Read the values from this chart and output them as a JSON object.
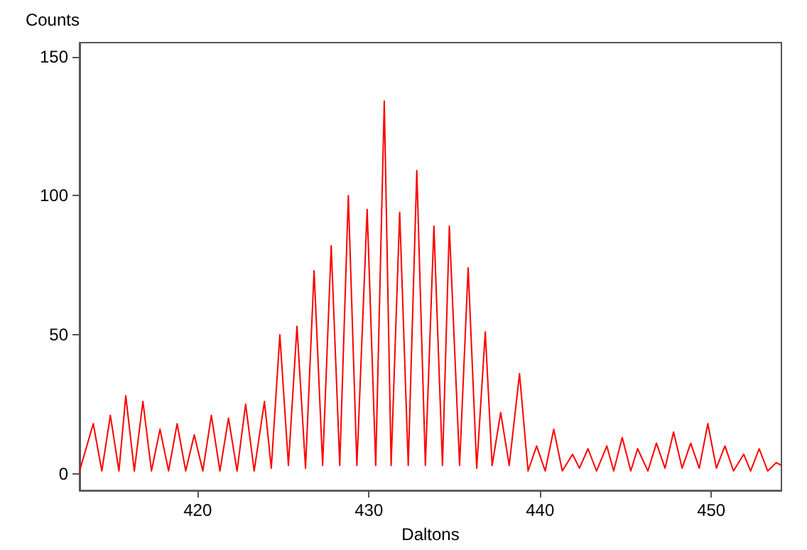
{
  "chart_data": {
    "type": "line",
    "xlabel": "Daltons",
    "ylabel": "Counts",
    "xlim": [
      413.1,
      454.1
    ],
    "ylim": [
      -6,
      155
    ],
    "xticks": [
      420,
      430,
      440,
      450
    ],
    "yticks": [
      0,
      50,
      100,
      150
    ],
    "grid": false,
    "marker": "none",
    "line_style": "solid",
    "series": [
      {
        "color": "#ff0000",
        "x": [
          413.1,
          413.9,
          414.4,
          414.9,
          415.4,
          415.8,
          416.3,
          416.8,
          417.3,
          417.8,
          418.3,
          418.8,
          419.3,
          419.8,
          420.3,
          420.8,
          421.3,
          421.8,
          422.3,
          422.8,
          423.3,
          423.9,
          424.3,
          424.8,
          425.3,
          425.8,
          426.3,
          426.8,
          427.3,
          427.8,
          428.3,
          428.8,
          429.3,
          429.9,
          430.4,
          430.9,
          431.3,
          431.8,
          432.3,
          432.8,
          433.3,
          433.8,
          434.3,
          434.7,
          435.3,
          435.8,
          436.3,
          436.8,
          437.2,
          437.7,
          438.2,
          438.8,
          439.3,
          439.8,
          440.3,
          440.8,
          441.3,
          441.9,
          442.3,
          442.8,
          443.3,
          443.9,
          444.3,
          444.8,
          445.3,
          445.7,
          446.3,
          446.8,
          447.3,
          447.8,
          448.3,
          448.8,
          449.3,
          449.8,
          450.3,
          450.8,
          451.3,
          451.9,
          452.3,
          452.8,
          453.3,
          453.8,
          454.1
        ],
        "values": [
          1,
          18,
          1,
          21,
          1,
          28,
          1,
          26,
          1,
          16,
          1,
          18,
          1,
          14,
          1,
          21,
          1,
          20,
          1,
          25,
          1,
          26,
          2,
          50,
          3,
          53,
          2,
          73,
          3,
          82,
          3,
          100,
          3,
          95,
          3,
          134,
          3,
          94,
          3,
          109,
          3,
          89,
          3,
          89,
          3,
          74,
          2,
          51,
          3,
          22,
          3,
          36,
          1,
          10,
          1,
          16,
          1,
          7,
          2,
          9,
          1,
          10,
          1,
          13,
          1,
          9,
          1,
          11,
          2,
          15,
          2,
          11,
          2,
          18,
          2,
          10,
          1,
          7,
          1,
          9,
          1,
          4,
          3
        ]
      }
    ]
  }
}
